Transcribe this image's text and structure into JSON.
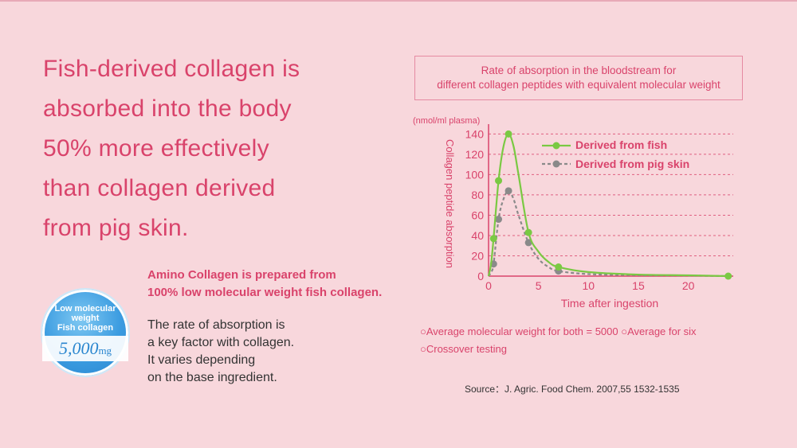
{
  "headline": {
    "lines": [
      "Fish-derived collagen is",
      "absorbed into the body",
      "50% more effectively",
      "than collagen derived",
      "from pig skin."
    ]
  },
  "subheading": {
    "lines": [
      "Amino Collagen is prepared from",
      "100% low molecular weight fish collagen."
    ]
  },
  "body": {
    "lines": [
      "The rate of absorption is",
      "a key factor with collagen.",
      "It varies depending",
      "on the base ingredient."
    ]
  },
  "badge": {
    "lines": [
      "Low molecular",
      "weight",
      "Fish collagen"
    ],
    "amount": "5,000",
    "unit": "mg"
  },
  "colors": {
    "accent": "#d9436b",
    "fish": "#7ac943",
    "pig": "#8a8a8a",
    "badge": "#3a9be0",
    "background": "#f8d7dc"
  },
  "chart_data": {
    "type": "line",
    "title_lines": [
      "Rate of absorption in the bloodstream for",
      "different collagen peptides with equivalent molecular weight"
    ],
    "unit_label": "(nmol/ml plasma)",
    "ylabel": "Collagen peptide absorption",
    "xlabel": "Time after ingestion",
    "ylim": [
      0,
      145
    ],
    "xlim": [
      0,
      24.5
    ],
    "yticks": [
      0,
      20,
      40,
      60,
      80,
      100,
      120,
      140
    ],
    "xticks": [
      0,
      5,
      10,
      15,
      20
    ],
    "grid": true,
    "legend_position": "top-right",
    "series": [
      {
        "name": "Derived from fish",
        "points": [
          [
            0.5,
            37
          ],
          [
            1,
            94
          ],
          [
            2,
            140
          ],
          [
            4,
            43
          ],
          [
            7,
            9
          ],
          [
            24,
            0
          ]
        ],
        "curve": [
          [
            0,
            0
          ],
          [
            0.25,
            12
          ],
          [
            0.5,
            37
          ],
          [
            1,
            94
          ],
          [
            1.5,
            128
          ],
          [
            2,
            140
          ],
          [
            2.5,
            128
          ],
          [
            3,
            100
          ],
          [
            4,
            43
          ],
          [
            5,
            24
          ],
          [
            6,
            14
          ],
          [
            7,
            9
          ],
          [
            10,
            4
          ],
          [
            15,
            1.5
          ],
          [
            20,
            0.8
          ],
          [
            24,
            0
          ]
        ]
      },
      {
        "name": "Derived from pig skin",
        "points": [
          [
            0.5,
            12
          ],
          [
            1,
            56
          ],
          [
            2,
            84
          ],
          [
            4,
            33
          ],
          [
            7,
            5
          ]
        ],
        "curve": [
          [
            0,
            0
          ],
          [
            0.25,
            4
          ],
          [
            0.5,
            12
          ],
          [
            1,
            56
          ],
          [
            1.5,
            76
          ],
          [
            2,
            84
          ],
          [
            2.5,
            76
          ],
          [
            3,
            60
          ],
          [
            4,
            33
          ],
          [
            5,
            17
          ],
          [
            6,
            9
          ],
          [
            7,
            5
          ],
          [
            10,
            2
          ],
          [
            15,
            1
          ],
          [
            20,
            0.5
          ],
          [
            24,
            0
          ]
        ]
      }
    ]
  },
  "notes": {
    "lines": [
      "○Average molecular weight for both = 5000  ○Average for six",
      "○Crossover testing"
    ]
  },
  "source": "Source：J. Agric. Food Chem. 2007,55 1532-1535"
}
